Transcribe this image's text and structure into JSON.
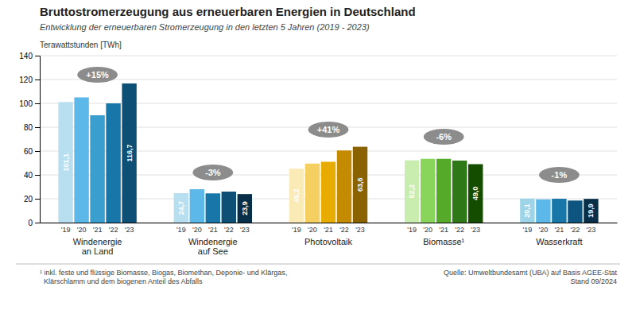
{
  "chart_data": {
    "type": "bar",
    "title": "Bruttostromerzeugung aus erneuerbaren Energien in Deutschland",
    "subtitle": "Entwicklung der erneuerbaren Stromerzeugung in den letzten 5 Jahren (2019 - 2023)",
    "y_label": "Terawattstunden [TWh]",
    "categories": [
      "Windenergie\nan Land",
      "Windenergie\nauf See",
      "Photovoltaik",
      "Biomasse¹",
      "Wasserkraft"
    ],
    "series": [
      {
        "name": "'19",
        "values": [
          101.1,
          24.7,
          45.2,
          52.2,
          20.1
        ],
        "colors": [
          "#b8dff0",
          "#b8dff0",
          "#faeab5",
          "#c8edae",
          "#9dd4e8"
        ],
        "value_labels": [
          "101,1",
          "24,7",
          "45,2",
          "52,2",
          "20,1"
        ]
      },
      {
        "name": "'20",
        "values": [
          105.0,
          28.0,
          49.5,
          53.5,
          19.5
        ],
        "colors": [
          "#5bb8e8",
          "#5bb8e8",
          "#f5d060",
          "#89d45a",
          "#5bb8e8"
        ]
      },
      {
        "name": "'21",
        "values": [
          90.0,
          24.5,
          51.0,
          53.5,
          20.0
        ],
        "colors": [
          "#3a9ecf",
          "#1877a8",
          "#e8ac00",
          "#55aa2a",
          "#1877a8"
        ]
      },
      {
        "name": "'22",
        "values": [
          100.0,
          26.0,
          60.5,
          52.0,
          18.5
        ],
        "colors": [
          "#1877a8",
          "#0d4f75",
          "#c48a00",
          "#2e7818",
          "#0d5580"
        ]
      },
      {
        "name": "'23",
        "values": [
          116.7,
          23.9,
          63.6,
          49.0,
          19.9
        ],
        "colors": [
          "#0d4f75",
          "#082f47",
          "#8a6200",
          "#144d00",
          "#082f47"
        ],
        "value_labels": [
          "116,7",
          "23,9",
          "63,6",
          "49,0",
          "19,9"
        ]
      }
    ],
    "annotations": [
      {
        "text": "+15%",
        "x": "Windenergie\nan Land",
        "y": 124
      },
      {
        "text": "-3%",
        "x": "Windenergie\nauf See",
        "y": 42
      },
      {
        "text": "+41%",
        "x": "Photovoltaik",
        "y": 78
      },
      {
        "text": "-6%",
        "x": "Biomasse¹",
        "y": 72
      },
      {
        "text": "-1%",
        "x": "Wasserkraft",
        "y": 40
      }
    ],
    "ylim": [
      0,
      140
    ],
    "yticks": [
      0,
      20,
      40,
      60,
      80,
      100,
      120,
      140
    ],
    "grid": true,
    "footnote": "¹ inkl. feste und flüssige Biomasse, Biogas, Biomethan, Deponie- und Klärgas,\n  Klärschlamm und dem biogenen Anteil des Abfalls",
    "source": "Quelle: Umweltbundesamt (UBA) auf Basis AGEE-Stat\nStand 09/2024"
  }
}
